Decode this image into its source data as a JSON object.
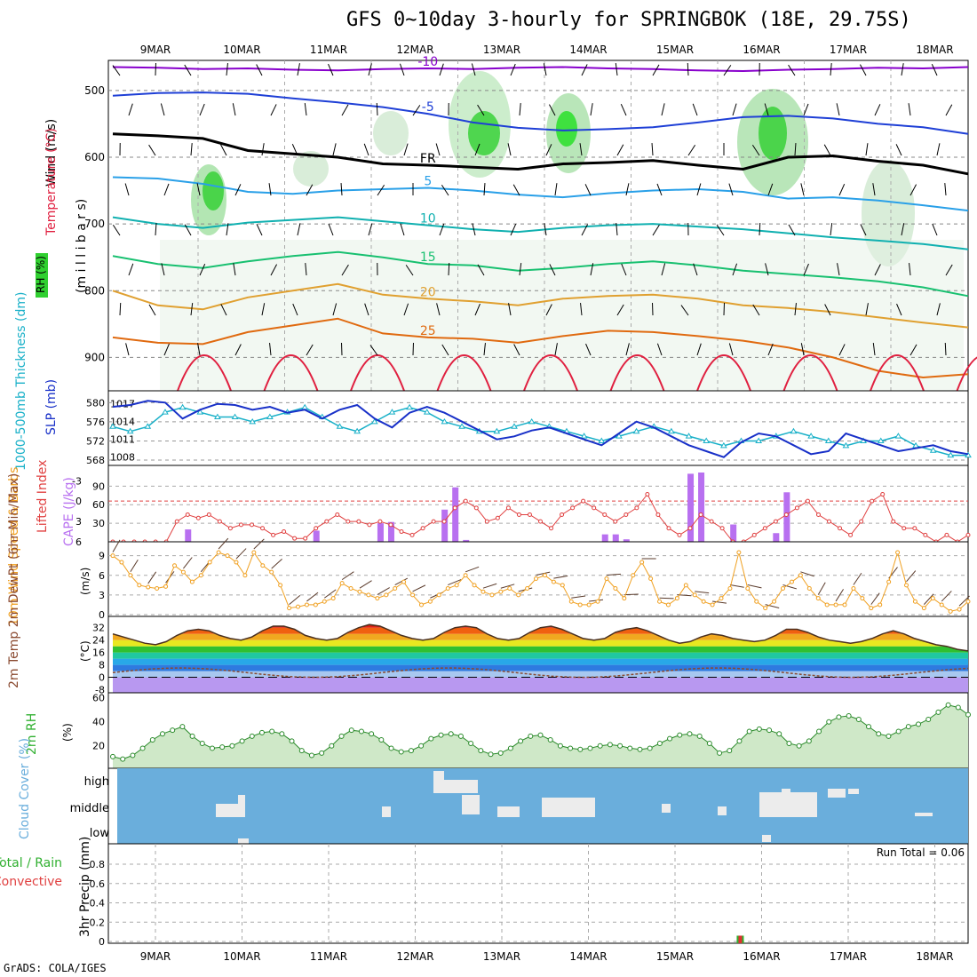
{
  "title": "GFS 0~10day 3-hourly for SPRINGBOK (18E, 29.75S)",
  "credit": "GrADS: COLA/IGES",
  "colors": {
    "purple": "#8800cc",
    "blue": "#1e3fd6",
    "skyblue": "#2aa0e8",
    "teal": "#10b0b0",
    "green": "#18c070",
    "orange": "#e0a030",
    "darkorange": "#e06a10",
    "red": "#e02040",
    "cape": "#b870f0",
    "li": "#e04040",
    "wind": "#f0a020",
    "rh2m": "#30b030",
    "cloud": "#6aaedc",
    "thick": "#18b0c8",
    "slp": "#1830c8"
  },
  "chart_data": [
    {
      "type": "heatmap",
      "name": "upper-air cross-section",
      "dates": [
        "9MAR",
        "10MAR",
        "11MAR",
        "12MAR",
        "13MAR",
        "14MAR",
        "15MAR",
        "16MAR",
        "17MAR",
        "18MAR"
      ],
      "yticks": [
        "500",
        "600",
        "700",
        "800",
        "900"
      ],
      "ylabel": "(m i l l i b a r s)",
      "legend_wind": "Wind (m/s)",
      "legend_temp": "Temperature (°C)",
      "legend_rh": "RH (%)",
      "contour_labels": [
        "-10",
        "-5",
        "FR",
        "5",
        "10",
        "15",
        "20",
        "25"
      ],
      "isotherms": [
        {
          "label": "-10",
          "p": [
            465,
            466,
            468,
            467,
            469,
            470,
            468,
            467,
            468,
            466,
            465,
            467,
            468,
            470,
            471,
            469,
            468,
            466,
            467,
            465
          ]
        },
        {
          "label": "-5",
          "p": [
            508,
            504,
            503,
            505,
            512,
            518,
            525,
            535,
            548,
            556,
            560,
            558,
            555,
            548,
            540,
            538,
            542,
            550,
            555,
            565
          ]
        },
        {
          "label": "FR",
          "p": [
            565,
            568,
            572,
            590,
            595,
            600,
            610,
            612,
            615,
            618,
            610,
            608,
            605,
            612,
            618,
            600,
            598,
            606,
            612,
            625
          ]
        },
        {
          "label": "5",
          "p": [
            630,
            632,
            640,
            652,
            655,
            650,
            648,
            646,
            650,
            656,
            660,
            654,
            650,
            648,
            652,
            662,
            660,
            665,
            672,
            680
          ]
        },
        {
          "label": "10",
          "p": [
            690,
            700,
            706,
            698,
            694,
            690,
            696,
            702,
            708,
            712,
            706,
            702,
            700,
            704,
            708,
            714,
            720,
            725,
            730,
            738
          ]
        },
        {
          "label": "15",
          "p": [
            748,
            760,
            766,
            756,
            748,
            742,
            750,
            760,
            762,
            770,
            766,
            760,
            756,
            762,
            770,
            775,
            780,
            786,
            795,
            808
          ]
        },
        {
          "label": "20",
          "p": [
            800,
            822,
            828,
            810,
            800,
            790,
            806,
            812,
            816,
            822,
            812,
            808,
            806,
            812,
            822,
            826,
            832,
            840,
            848,
            855
          ]
        },
        {
          "label": "25",
          "p": [
            870,
            878,
            880,
            862,
            852,
            842,
            864,
            870,
            872,
            878,
            868,
            860,
            862,
            868,
            875,
            885,
            900,
            920,
            930,
            925
          ]
        }
      ]
    },
    {
      "type": "line",
      "name": "thickness and slp",
      "ylabel_left": "1000-500mb Thickness (dm)",
      "ylabel_right": "SLP (mb)",
      "yticks_left": [
        "580",
        "576",
        "572",
        "568"
      ],
      "yticks_right": [
        "1017",
        "1014",
        "1011",
        "1008"
      ],
      "thickness": [
        575,
        574,
        575,
        578,
        579,
        578,
        577,
        577,
        576,
        577,
        578,
        579,
        577,
        575,
        574,
        576,
        578,
        579,
        578,
        576,
        575,
        574,
        574,
        575,
        576,
        575,
        574,
        573,
        572,
        573,
        574,
        575,
        574,
        573,
        572,
        571,
        572,
        572,
        573,
        574,
        573,
        572,
        571,
        572,
        572,
        573,
        571,
        570,
        569,
        569
      ],
      "slp": [
        1016.5,
        1016.8,
        1017.5,
        1017.2,
        1014.5,
        1016.0,
        1017.0,
        1016.8,
        1016.0,
        1016.5,
        1015.5,
        1016.0,
        1014.5,
        1016.0,
        1016.8,
        1014.5,
        1013.0,
        1015.5,
        1016.5,
        1015.5,
        1014.0,
        1012.5,
        1011.0,
        1011.5,
        1012.5,
        1013.0,
        1012.0,
        1011.0,
        1010.0,
        1012.0,
        1014.0,
        1013.0,
        1011.5,
        1010.0,
        1009.0,
        1008.0,
        1010.5,
        1012.0,
        1011.5,
        1010.0,
        1008.5,
        1009.0,
        1012.0,
        1011.0,
        1010.0,
        1009.0,
        1009.5,
        1010.0,
        1009.0,
        1008.5
      ]
    },
    {
      "type": "bar",
      "name": "lifted index and cape",
      "ylabel_left": "Lifted Index",
      "ylabel_right": "CAPE (J/kg)",
      "yticks_left": [
        "-3",
        "0",
        "3",
        "6"
      ],
      "yticks_right": [
        "90",
        "60",
        "30"
      ],
      "lifted_index": [
        6,
        6,
        6,
        6,
        6,
        6,
        3,
        2,
        2.5,
        2,
        3,
        4,
        3.5,
        3.5,
        4,
        5,
        4.5,
        5.5,
        5.5,
        4,
        3,
        2,
        3,
        3,
        3.5,
        3,
        3.5,
        4.5,
        5,
        4,
        3,
        3,
        1,
        0,
        1,
        3,
        2.5,
        1,
        2,
        2,
        3,
        4,
        2,
        1,
        0,
        1,
        2,
        3,
        2,
        1,
        -1,
        2,
        4,
        5,
        4,
        2,
        3,
        4,
        6,
        6,
        5,
        4,
        3,
        2,
        1,
        0,
        2,
        3,
        4,
        5,
        3,
        0,
        -1,
        3,
        4,
        4,
        5,
        6,
        5,
        6,
        5
      ],
      "cape": [
        {
          "i": 7,
          "v": 20
        },
        {
          "i": 19,
          "v": 18
        },
        {
          "i": 25,
          "v": 30
        },
        {
          "i": 26,
          "v": 32
        },
        {
          "i": 31,
          "v": 52
        },
        {
          "i": 32,
          "v": 88
        },
        {
          "i": 33,
          "v": 3
        },
        {
          "i": 46,
          "v": 12
        },
        {
          "i": 47,
          "v": 12
        },
        {
          "i": 48,
          "v": 4
        },
        {
          "i": 54,
          "v": 110
        },
        {
          "i": 55,
          "v": 112
        },
        {
          "i": 58,
          "v": 28
        },
        {
          "i": 62,
          "v": 14
        },
        {
          "i": 63,
          "v": 80
        }
      ]
    },
    {
      "type": "line",
      "name": "10m wind",
      "ylabel": "10m Wind Speed & Barbs",
      "yunit": "(m/s)",
      "yticks": [
        "9",
        "6",
        "3",
        "0"
      ],
      "speed": [
        9,
        8,
        6,
        4.5,
        4.2,
        4.0,
        4.3,
        7.5,
        6.5,
        5.0,
        6.0,
        8.0,
        9.5,
        9.0,
        8.0,
        6.0,
        9.5,
        7.5,
        6.5,
        4.5,
        1.0,
        1.2,
        1.5,
        1.5,
        2.0,
        2.5,
        4.8,
        4.0,
        3.5,
        3.0,
        2.5,
        3.0,
        4.0,
        5.0,
        3.0,
        1.5,
        2.0,
        3.0,
        4.0,
        4.5,
        6.0,
        4.5,
        3.5,
        3.0,
        3.5,
        4.0,
        3.0,
        4.0,
        5.5,
        6.0,
        5.0,
        4.5,
        2.0,
        1.5,
        1.5,
        2.0,
        5.5,
        4.0,
        2.5,
        6.0,
        8.0,
        5.5,
        2.0,
        1.5,
        2.5,
        4.5,
        3.0,
        2.0,
        1.5,
        2.5,
        4.0,
        9.5,
        4.0,
        2.0,
        1.0,
        2.0,
        4.0,
        5.0,
        6.0,
        4.0,
        2.5,
        1.5,
        1.5,
        1.5,
        4.0,
        2.5,
        1.0,
        1.5,
        5.0,
        9.5,
        4.5,
        2.0,
        1.0,
        2.5,
        1.5,
        0.5,
        0.8,
        2.0
      ]
    },
    {
      "type": "area",
      "name": "2m temperature",
      "ylabel": "2m Temp 2m DewPt (6hr Min/Max)",
      "yunit": "(°C)",
      "yticks": [
        "32",
        "24",
        "16",
        "8",
        "0",
        "-8"
      ],
      "temp": [
        28,
        26,
        24,
        22,
        21,
        23,
        27,
        30,
        31,
        30,
        27,
        25,
        24,
        26,
        30,
        33,
        33,
        31,
        27,
        25,
        24,
        25,
        29,
        32,
        34,
        33,
        30,
        27,
        25,
        24,
        25,
        29,
        32,
        33,
        32,
        28,
        25,
        24,
        25,
        29,
        32,
        33,
        31,
        28,
        25,
        24,
        25,
        29,
        31,
        32,
        30,
        27,
        24,
        22,
        23,
        26,
        28,
        27,
        25,
        24,
        23,
        24,
        27,
        31,
        31,
        29,
        26,
        24,
        23,
        22,
        23,
        25,
        28,
        30,
        28,
        25,
        23,
        21,
        20,
        18,
        17
      ]
    },
    {
      "type": "area",
      "name": "2m rh",
      "ylabel": "2m RH",
      "yunit": "(%)",
      "yticks": [
        "60",
        "40",
        "20"
      ],
      "rh": [
        11,
        9,
        12,
        18,
        25,
        30,
        33,
        36,
        28,
        22,
        18,
        19,
        20,
        24,
        28,
        31,
        32,
        30,
        24,
        16,
        12,
        14,
        20,
        28,
        33,
        32,
        30,
        25,
        18,
        15,
        16,
        20,
        26,
        29,
        30,
        28,
        22,
        16,
        13,
        14,
        18,
        24,
        28,
        29,
        25,
        20,
        18,
        17,
        18,
        20,
        21,
        20,
        18,
        17,
        18,
        22,
        26,
        29,
        30,
        28,
        22,
        14,
        16,
        24,
        32,
        34,
        33,
        30,
        22,
        20,
        24,
        32,
        40,
        44,
        45,
        42,
        36,
        30,
        28,
        32,
        36,
        38,
        42,
        48,
        54,
        52,
        46
      ]
    },
    {
      "type": "heatmap",
      "name": "cloud cover",
      "ylabel": "Cloud Cover (%)",
      "levels": [
        "high",
        "middle",
        "low"
      ]
    },
    {
      "type": "bar",
      "name": "3hr precip",
      "ylabel": "3hr Precip (mm)",
      "legend_total": "Total / Rain",
      "legend_conv": "Convective",
      "yticks": [
        "0.8",
        "0.6",
        "0.4",
        "0.2",
        "0"
      ],
      "run_total": "Run Total = 0.06",
      "bars": [
        {
          "i": 63,
          "v": 0.06
        }
      ]
    }
  ]
}
